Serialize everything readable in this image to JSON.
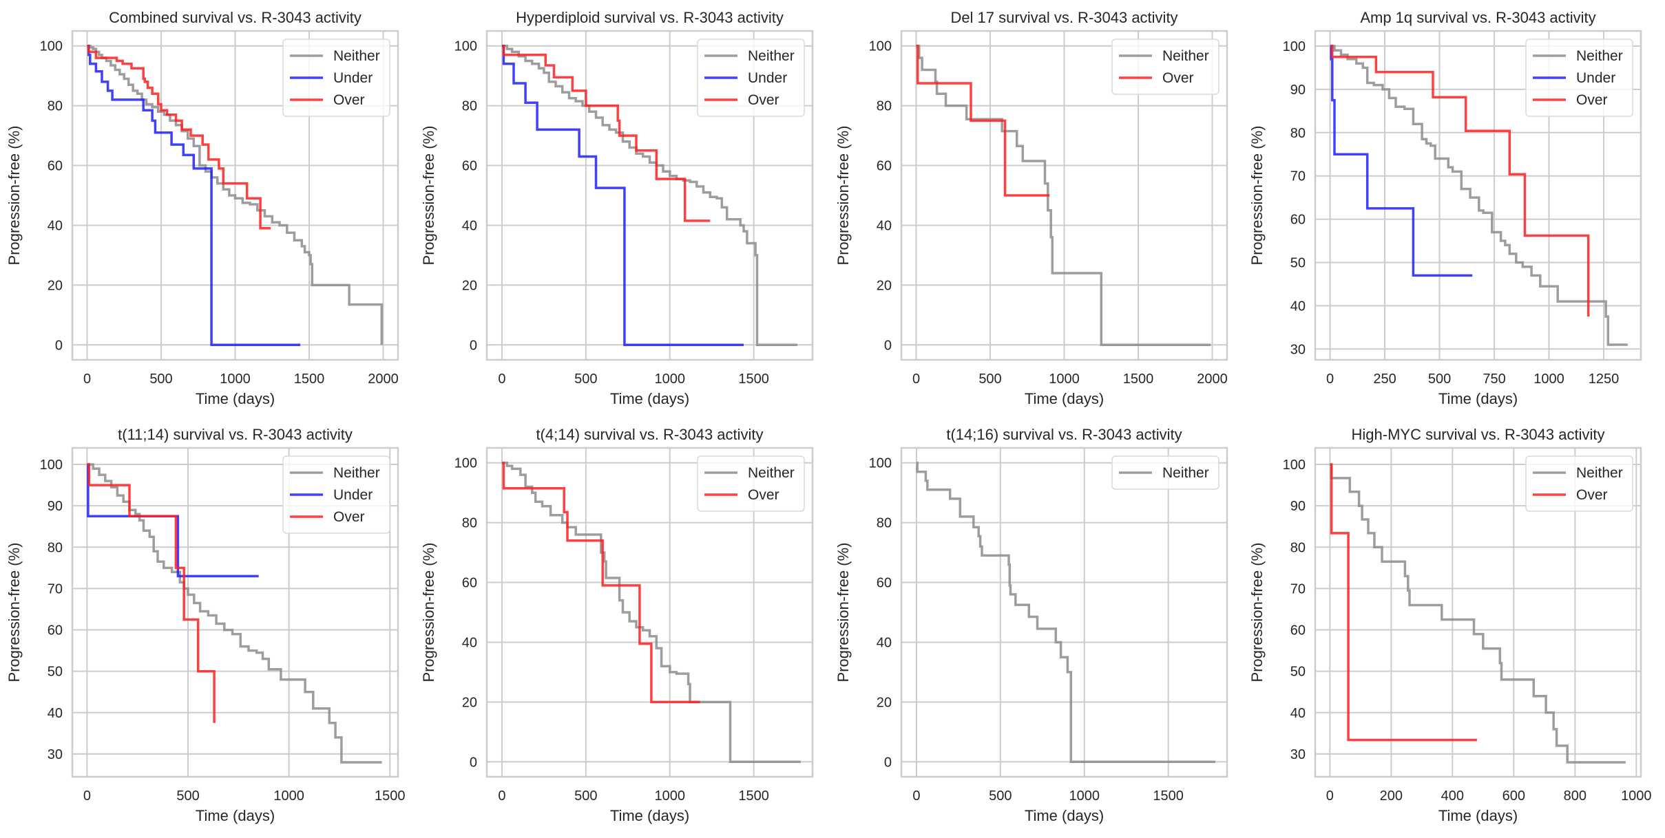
{
  "figure": {
    "panels_per_row": 4,
    "colors": {
      "Neither": "#8c8c8c",
      "Under": "#1f1fff",
      "Over": "#ff1f1f"
    },
    "grid_color": "#cccccc",
    "text_color": "#262626"
  },
  "chart_data": [
    {
      "type": "line",
      "title": "Combined survival vs. R-3043 activity",
      "xlabel": "Time (days)",
      "ylabel": "Progression-free (%)",
      "xlim": [
        -100,
        2100
      ],
      "ylim": [
        -5,
        105
      ],
      "xticks": [
        0,
        500,
        1000,
        1500,
        2000
      ],
      "yticks": [
        0,
        20,
        40,
        60,
        80,
        100
      ],
      "grid": true,
      "legend": {
        "position": "top-right",
        "entries": [
          "Neither",
          "Under",
          "Over"
        ]
      },
      "series": [
        {
          "name": "Neither",
          "x": [
            0,
            20,
            40,
            60,
            80,
            100,
            130,
            160,
            190,
            220,
            250,
            280,
            310,
            340,
            370,
            400,
            440,
            480,
            520,
            560,
            600,
            640,
            680,
            720,
            760,
            800,
            840,
            880,
            920,
            960,
            1000,
            1050,
            1100,
            1150,
            1200,
            1250,
            1300,
            1350,
            1400,
            1430,
            1450,
            1470,
            1500,
            1510,
            1520,
            1760,
            1770,
            1990
          ],
          "y": [
            100,
            99.5,
            99,
            98,
            97,
            96,
            95,
            93.5,
            92,
            90.5,
            89,
            87,
            85,
            84,
            82,
            80.5,
            79.5,
            78,
            77,
            75,
            73.5,
            71.5,
            69,
            66.5,
            60,
            58,
            56,
            54,
            52,
            50,
            49,
            47.5,
            47,
            45,
            43,
            41,
            40,
            37.5,
            35,
            35,
            33,
            31,
            30,
            27,
            20,
            20,
            13.5,
            0
          ]
        },
        {
          "name": "Under",
          "x": [
            0,
            10,
            20,
            60,
            100,
            140,
            170,
            200,
            380,
            440,
            460,
            570,
            650,
            720,
            840,
            1440
          ],
          "y": [
            100,
            97,
            94,
            91.5,
            88,
            85,
            82,
            82,
            78.5,
            75,
            71,
            67,
            63.5,
            59,
            0,
            0
          ]
        },
        {
          "name": "Over",
          "x": [
            0,
            10,
            60,
            200,
            240,
            300,
            380,
            390,
            410,
            440,
            480,
            500,
            540,
            600,
            640,
            680,
            700,
            780,
            820,
            890,
            920,
            1080,
            1170,
            1240
          ],
          "y": [
            100,
            98,
            96,
            95,
            94,
            92.5,
            89,
            88,
            86,
            84,
            80.5,
            78.5,
            77,
            75,
            72,
            72,
            70,
            67,
            62,
            59,
            54,
            49,
            39,
            39
          ]
        }
      ]
    },
    {
      "type": "line",
      "title": "Hyperdiploid survival vs. R-3043 activity",
      "xlabel": "Time (days)",
      "ylabel": "Progression-free (%)",
      "xlim": [
        -90,
        1850
      ],
      "ylim": [
        -5,
        105
      ],
      "xticks": [
        0,
        500,
        1000,
        1500
      ],
      "yticks": [
        0,
        20,
        40,
        60,
        80,
        100
      ],
      "grid": true,
      "legend": {
        "position": "top-right",
        "entries": [
          "Neither",
          "Under",
          "Over"
        ]
      },
      "series": [
        {
          "name": "Neither",
          "x": [
            0,
            30,
            60,
            100,
            140,
            180,
            220,
            250,
            280,
            320,
            360,
            400,
            440,
            480,
            520,
            560,
            600,
            640,
            680,
            720,
            760,
            800,
            840,
            880,
            920,
            960,
            1000,
            1040,
            1080,
            1120,
            1160,
            1200,
            1240,
            1280,
            1310,
            1340,
            1400,
            1420,
            1440,
            1460,
            1500,
            1510,
            1520,
            1760
          ],
          "y": [
            100,
            99,
            98,
            96.5,
            95,
            94,
            92.5,
            91,
            88,
            86.5,
            84.5,
            82.5,
            81.5,
            80,
            78,
            76,
            73.5,
            72,
            71,
            68,
            66,
            64,
            63,
            61,
            60,
            58,
            56.5,
            55.5,
            55,
            54.5,
            53,
            51,
            49.5,
            49,
            46,
            42,
            42,
            40,
            38,
            34,
            34,
            30,
            0,
            0
          ]
        },
        {
          "name": "Under",
          "x": [
            0,
            10,
            70,
            140,
            210,
            460,
            560,
            730,
            1440
          ],
          "y": [
            100,
            94,
            87.5,
            81,
            72,
            63,
            52.5,
            0,
            0
          ]
        },
        {
          "name": "Over",
          "x": [
            0,
            10,
            260,
            310,
            420,
            500,
            690,
            700,
            800,
            920,
            1090,
            1240
          ],
          "y": [
            100,
            97,
            93.5,
            89.5,
            85,
            80,
            75,
            70,
            65,
            55.5,
            41.5,
            41.5
          ]
        }
      ]
    },
    {
      "type": "line",
      "title": "Del 17 survival vs. R-3043 activity",
      "xlabel": "Time (days)",
      "ylabel": "Progression-free (%)",
      "xlim": [
        -100,
        2100
      ],
      "ylim": [
        -5,
        105
      ],
      "xticks": [
        0,
        500,
        1000,
        1500,
        2000
      ],
      "yticks": [
        0,
        20,
        40,
        60,
        80,
        100
      ],
      "grid": true,
      "legend": {
        "position": "top-right",
        "entries": [
          "Neither",
          "Over"
        ]
      },
      "series": [
        {
          "name": "Neither",
          "x": [
            0,
            20,
            40,
            130,
            140,
            200,
            340,
            580,
            680,
            720,
            870,
            890,
            910,
            920,
            1250,
            1990
          ],
          "y": [
            100,
            96,
            92,
            88,
            84,
            80,
            75.5,
            71.5,
            66.5,
            61.5,
            54,
            45,
            36,
            24,
            0,
            0
          ]
        },
        {
          "name": "Over",
          "x": [
            0,
            10,
            370,
            600,
            900
          ],
          "y": [
            100,
            87.5,
            75,
            50,
            50
          ]
        }
      ]
    },
    {
      "type": "line",
      "title": "Amp 1q survival vs. R-3043 activity",
      "xlabel": "Time (days)",
      "ylabel": "Progression-free (%)",
      "xlim": [
        -68,
        1420
      ],
      "ylim": [
        27.5,
        103.5
      ],
      "xticks": [
        0,
        250,
        500,
        750,
        1000,
        1250
      ],
      "yticks": [
        30,
        40,
        50,
        60,
        70,
        80,
        90,
        100
      ],
      "grid": true,
      "legend": {
        "position": "top-right",
        "entries": [
          "Neither",
          "Under",
          "Over"
        ]
      },
      "series": [
        {
          "name": "Neither",
          "x": [
            0,
            20,
            50,
            80,
            120,
            140,
            150,
            170,
            200,
            240,
            270,
            300,
            340,
            380,
            420,
            440,
            460,
            480,
            500,
            540,
            560,
            600,
            640,
            680,
            700,
            720,
            740,
            780,
            800,
            820,
            850,
            880,
            920,
            960,
            1000,
            1040,
            1080,
            1120,
            1160,
            1200,
            1240,
            1260,
            1270,
            1300,
            1360
          ],
          "y": [
            100,
            99,
            98,
            97,
            96,
            96,
            95,
            91.5,
            91,
            90,
            88,
            86,
            85.5,
            82,
            78.5,
            77.5,
            77,
            74,
            74,
            72,
            71,
            67,
            65,
            62,
            61.5,
            61.5,
            57,
            55,
            54,
            52,
            50,
            49,
            47,
            44.5,
            44.5,
            41,
            41,
            41,
            41,
            41,
            41,
            37.5,
            31,
            31,
            31
          ]
        },
        {
          "name": "Under",
          "x": [
            0,
            5,
            10,
            20,
            170,
            380,
            650
          ],
          "y": [
            100,
            97,
            87.5,
            75,
            62.5,
            47,
            47
          ]
        },
        {
          "name": "Over",
          "x": [
            0,
            10,
            210,
            470,
            620,
            820,
            890,
            1180
          ],
          "y": [
            100,
            97.5,
            94,
            88.2,
            80.4,
            70.4,
            56.2,
            37.5
          ]
        }
      ]
    },
    {
      "type": "line",
      "title": "t(11;14) survival vs. R-3043 activity",
      "xlabel": "Time (days)",
      "ylabel": "Progression-free (%)",
      "xlim": [
        -73,
        1540
      ],
      "ylim": [
        24.5,
        104
      ],
      "xticks": [
        0,
        500,
        1000,
        1500
      ],
      "yticks": [
        30,
        40,
        50,
        60,
        70,
        80,
        90,
        100
      ],
      "grid": true,
      "legend": {
        "position": "top-right",
        "entries": [
          "Neither",
          "Under",
          "Over"
        ]
      },
      "series": [
        {
          "name": "Neither",
          "x": [
            0,
            30,
            60,
            90,
            120,
            150,
            180,
            210,
            240,
            260,
            280,
            310,
            330,
            350,
            380,
            420,
            440,
            460,
            480,
            500,
            530,
            560,
            600,
            640,
            680,
            720,
            760,
            800,
            840,
            870,
            900,
            960,
            1020,
            1060,
            1080,
            1120,
            1200,
            1230,
            1260,
            1460
          ],
          "y": [
            100,
            99,
            97.5,
            96,
            94.5,
            92.5,
            91,
            89,
            88,
            86.5,
            84,
            82.5,
            79,
            76.5,
            75,
            74,
            74,
            71.5,
            70,
            68.5,
            66.5,
            64.5,
            63.5,
            61.5,
            60,
            59,
            56,
            55,
            54.5,
            53,
            50.5,
            48,
            48,
            48,
            45,
            41,
            37.5,
            34,
            28,
            28
          ]
        },
        {
          "name": "Under",
          "x": [
            0,
            5,
            450,
            850
          ],
          "y": [
            100,
            87.5,
            73,
            73
          ]
        },
        {
          "name": "Over",
          "x": [
            0,
            10,
            210,
            440,
            480,
            550,
            630
          ],
          "y": [
            100,
            95,
            87.5,
            75,
            62.5,
            50,
            37.5
          ]
        }
      ]
    },
    {
      "type": "line",
      "title": "t(4;14) survival vs. R-3043 activity",
      "xlabel": "Time (days)",
      "ylabel": "Progression-free (%)",
      "xlim": [
        -90,
        1850
      ],
      "ylim": [
        -5,
        105
      ],
      "xticks": [
        0,
        500,
        1000,
        1500
      ],
      "yticks": [
        0,
        20,
        40,
        60,
        80,
        100
      ],
      "grid": true,
      "legend": {
        "position": "top-right",
        "entries": [
          "Neither",
          "Over"
        ]
      },
      "series": [
        {
          "name": "Neither",
          "x": [
            0,
            30,
            60,
            110,
            140,
            180,
            200,
            240,
            290,
            360,
            390,
            440,
            470,
            590,
            610,
            620,
            700,
            720,
            760,
            800,
            840,
            880,
            920,
            950,
            1000,
            1040,
            1110,
            1120,
            1360,
            1780
          ],
          "y": [
            100,
            99,
            98,
            96,
            92,
            90,
            87,
            85.5,
            82.5,
            80,
            78.5,
            76,
            76,
            70,
            67,
            61.5,
            54,
            50,
            47,
            45,
            44,
            42,
            38,
            32,
            30,
            29.5,
            26,
            20,
            0,
            0
          ]
        },
        {
          "name": "Over",
          "x": [
            0,
            10,
            370,
            390,
            600,
            820,
            890,
            1180
          ],
          "y": [
            100,
            91.5,
            83.5,
            74,
            59,
            39.5,
            20,
            20
          ]
        }
      ]
    },
    {
      "type": "line",
      "title": "t(14;16) survival vs. R-3043 activity",
      "xlabel": "Time (days)",
      "ylabel": "Progression-free (%)",
      "xlim": [
        -90,
        1850
      ],
      "ylim": [
        -5,
        105
      ],
      "xticks": [
        0,
        500,
        1000,
        1500
      ],
      "yticks": [
        0,
        20,
        40,
        60,
        80,
        100
      ],
      "grid": true,
      "legend": {
        "position": "top-right",
        "entries": [
          "Neither"
        ]
      },
      "series": [
        {
          "name": "Neither",
          "x": [
            0,
            5,
            55,
            65,
            200,
            260,
            340,
            370,
            380,
            390,
            550,
            555,
            560,
            590,
            600,
            670,
            720,
            830,
            860,
            900,
            910,
            920,
            1780
          ],
          "y": [
            100,
            97,
            94,
            91,
            88,
            82,
            78.5,
            75.5,
            72,
            69,
            66,
            59,
            56,
            52.5,
            52.5,
            48.5,
            44.5,
            40,
            35,
            30,
            30,
            0,
            0
          ]
        }
      ]
    },
    {
      "type": "line",
      "title": "High-MYC survival vs. R-3043 activity",
      "xlabel": "Time (days)",
      "ylabel": "Progression-free (%)",
      "xlim": [
        -48,
        1015
      ],
      "ylim": [
        24.5,
        104
      ],
      "xticks": [
        0,
        200,
        400,
        600,
        800,
        1000
      ],
      "yticks": [
        30,
        40,
        50,
        60,
        70,
        80,
        90,
        100
      ],
      "grid": true,
      "legend": {
        "position": "top-right",
        "entries": [
          "Neither",
          "Over"
        ]
      },
      "series": [
        {
          "name": "Neither",
          "x": [
            0,
            5,
            65,
            95,
            105,
            125,
            145,
            170,
            245,
            255,
            260,
            365,
            470,
            500,
            555,
            560,
            665,
            705,
            730,
            740,
            775,
            965
          ],
          "y": [
            100,
            96.7,
            93.4,
            90,
            86.7,
            83.4,
            80,
            76.5,
            73,
            69.5,
            66,
            62.5,
            59,
            55.5,
            52,
            48,
            44,
            40,
            36,
            32,
            28,
            28
          ]
        },
        {
          "name": "Over",
          "x": [
            0,
            5,
            60,
            480
          ],
          "y": [
            100,
            83.4,
            33.4,
            33.4
          ]
        }
      ]
    }
  ]
}
